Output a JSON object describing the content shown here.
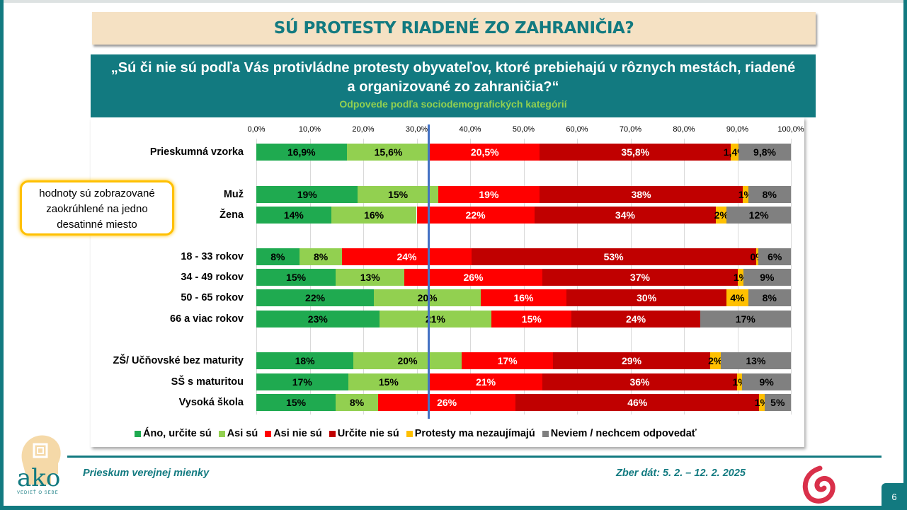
{
  "title": "SÚ PROTESTY RIADENÉ ZO ZAHRANIČIA?",
  "question_line1": "„Sú či nie sú podľa Vás protivládne protesty obyvateľov, ktoré prebiehajú v rôznych mestách, riadené",
  "question_line2": "a organizované zo zahraničia?“",
  "subtitle": "Odpovede podľa sociodemografických kategórií",
  "callout": "hodnoty sú zobrazované zaokrúhlené na jedno desatinné miesto",
  "footer": {
    "left": "Prieskum verejnej mienky",
    "right": "Zber dát: 5. 2. – 12. 2. 2025",
    "page": "6",
    "logo_text": "ako",
    "logo_sub": "VEDIEŤ O SEBE"
  },
  "chart_data": {
    "type": "bar",
    "orientation": "horizontal-stacked-100",
    "xlim": [
      0,
      100
    ],
    "x_ticks": [
      "0,0%",
      "10,0%",
      "20,0%",
      "30,0%",
      "40,0%",
      "50,0%",
      "60,0%",
      "70,0%",
      "80,0%",
      "90,0%",
      "100,0%"
    ],
    "grid": true,
    "reference_line": 32.5,
    "legend_position": "bottom",
    "series": [
      {
        "name": "Áno, určite sú",
        "color": "#1faa50"
      },
      {
        "name": "Asi sú",
        "color": "#92d050"
      },
      {
        "name": "Asi nie sú",
        "color": "#ff0000"
      },
      {
        "name": "Určite nie sú",
        "color": "#c00000"
      },
      {
        "name": "Protesty ma nezaujímajú",
        "color": "#ffc000"
      },
      {
        "name": "Neviem / nechcem odpovedať",
        "color": "#808080"
      }
    ],
    "categories": [
      {
        "label": "Prieskumná vzorka",
        "values": [
          16.9,
          15.6,
          20.5,
          35.8,
          1.4,
          9.8
        ],
        "labels": [
          "16,9%",
          "15,6%",
          "20,5%",
          "35,8%",
          "1,4%",
          "9,8%"
        ]
      },
      {
        "label": "Muž",
        "values": [
          19,
          15,
          19,
          38,
          1,
          8
        ],
        "labels": [
          "19%",
          "15%",
          "19%",
          "38%",
          "1%",
          "8%"
        ]
      },
      {
        "label": "Žena",
        "values": [
          14,
          16,
          22,
          34,
          2,
          12
        ],
        "labels": [
          "14%",
          "16%",
          "22%",
          "34%",
          "2%",
          "12%"
        ]
      },
      {
        "label": "18 - 33 rokov",
        "values": [
          8,
          8,
          24,
          53,
          0.5,
          6
        ],
        "labels": [
          "8%",
          "8%",
          "24%",
          "53%",
          "0%",
          "6%"
        ]
      },
      {
        "label": "34 - 49 rokov",
        "values": [
          15,
          13,
          26,
          37,
          1,
          9
        ],
        "labels": [
          "15%",
          "13%",
          "26%",
          "37%",
          "1%",
          "9%"
        ]
      },
      {
        "label": "50 - 65 rokov",
        "values": [
          22,
          20,
          16,
          30,
          4,
          8
        ],
        "labels": [
          "22%",
          "20%",
          "16%",
          "30%",
          "4%",
          "8%"
        ]
      },
      {
        "label": "66 a viac rokov",
        "values": [
          23,
          21,
          15,
          24,
          0,
          17
        ],
        "labels": [
          "23%",
          "21%",
          "15%",
          "24%",
          "",
          "17%"
        ]
      },
      {
        "label": "ZŠ/ Učňovské bez maturity",
        "values": [
          18,
          20,
          17,
          29,
          2,
          13
        ],
        "labels": [
          "18%",
          "20%",
          "17%",
          "29%",
          "2%",
          "13%"
        ]
      },
      {
        "label": "SŠ s maturitou",
        "values": [
          17,
          15,
          21,
          36,
          1,
          9
        ],
        "labels": [
          "17%",
          "15%",
          "21%",
          "36%",
          "1%",
          "9%"
        ]
      },
      {
        "label": "Vysoká škola",
        "values": [
          15,
          8,
          26,
          46,
          1,
          5
        ],
        "labels": [
          "15%",
          "8%",
          "26%",
          "46%",
          "1%",
          "5%"
        ]
      }
    ]
  }
}
